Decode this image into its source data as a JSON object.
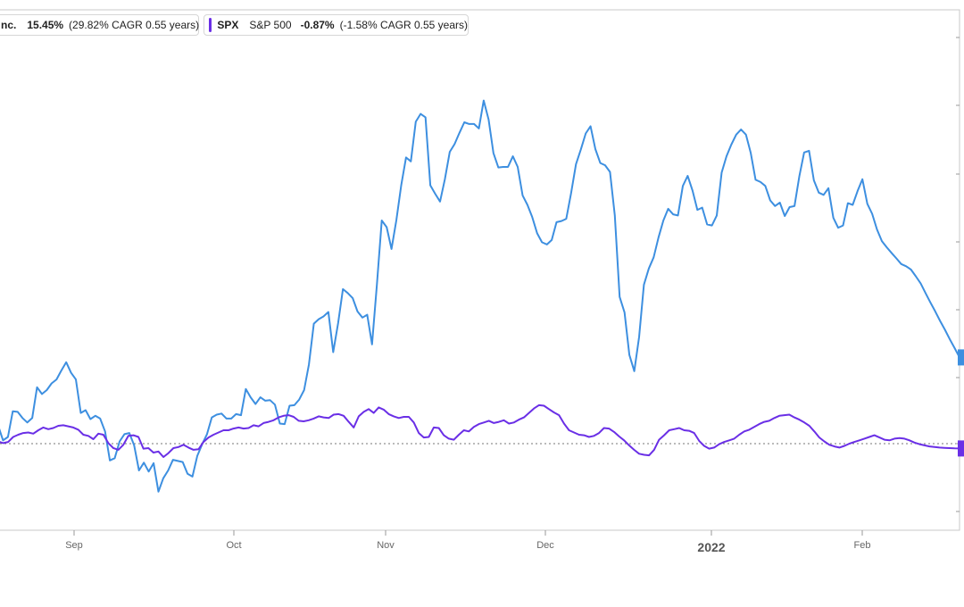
{
  "legend": [
    {
      "symbol": "",
      "name": "nc.",
      "change": "15.45%",
      "cagr": "(29.82% CAGR 0.55 years)",
      "color": "#3d8fe0"
    },
    {
      "symbol": "SPX",
      "name": "S&P 500",
      "change": "-0.87%",
      "cagr": "(-1.58% CAGR 0.55 years)",
      "color": "#6a2fe6"
    }
  ],
  "chart_data": {
    "type": "line",
    "title": "",
    "xlabel": "",
    "ylabel": "",
    "x_tick_labels": [
      "Sep",
      "Oct",
      "Nov",
      "Dec",
      "2022",
      "Feb"
    ],
    "y_axis_labels": "not visible (right-side ticks without labels)",
    "baseline": 0,
    "grid": false,
    "legend_position": "top-left",
    "series": [
      {
        "name": "nc.",
        "color": "#3d8fe0",
        "values": [
          3.2,
          0.6,
          1.2,
          5.8,
          5.7,
          4.6,
          3.8,
          4.6,
          10.1,
          8.9,
          9.6,
          10.8,
          11.5,
          13.1,
          14.6,
          12.7,
          11.5,
          5.5,
          6.0,
          4.4,
          5.0,
          4.5,
          2.2,
          -3.0,
          -2.6,
          0.4,
          1.7,
          1.9,
          -0.3,
          -4.8,
          -3.4,
          -5.0,
          -3.5,
          -8.6,
          -6.2,
          -4.8,
          -2.9,
          -3.1,
          -3.3,
          -5.4,
          -5.9,
          -2.2,
          -0.1,
          1.7,
          4.7,
          5.2,
          5.4,
          4.5,
          4.5,
          5.3,
          5.1,
          9.8,
          8.3,
          7.1,
          8.3,
          7.7,
          7.8,
          7.0,
          3.6,
          3.5,
          6.8,
          6.9,
          7.9,
          9.6,
          14.2,
          21.5,
          22.3,
          22.8,
          23.6,
          16.4,
          21.6,
          27.7,
          27.0,
          26.1,
          23.7,
          22.6,
          23.1,
          17.8,
          28.6,
          40.0,
          38.8,
          34.9,
          40.0,
          46.3,
          51.3,
          50.6,
          57.7,
          59.1,
          58.5,
          46.3,
          44.8,
          43.4,
          47.4,
          52.3,
          53.7,
          55.7,
          57.6,
          57.3,
          57.3,
          56.5,
          61.5,
          58.1,
          52.1,
          49.5,
          49.6,
          49.6,
          51.5,
          49.6,
          44.5,
          42.8,
          40.6,
          37.7,
          36.1,
          35.7,
          36.5,
          39.7,
          39.9,
          40.3,
          44.9,
          50.1,
          52.7,
          55.6,
          56.9,
          52.8,
          50.3,
          49.9,
          48.7,
          40.9,
          26.3,
          23.5,
          15.9,
          13.0,
          19.1,
          28.5,
          31.4,
          33.4,
          37.0,
          40.0,
          42.1,
          41.1,
          40.9,
          46.2,
          48.0,
          45.4,
          41.9,
          42.3,
          39.3,
          39.1,
          40.9,
          48.6,
          51.5,
          53.6,
          55.4,
          56.3,
          55.4,
          52.1,
          47.3,
          46.9,
          46.2,
          43.6,
          42.6,
          43.2,
          40.8,
          42.4,
          42.6,
          47.9,
          52.2,
          52.5,
          47.2,
          45.0,
          44.6,
          45.8,
          40.5,
          38.7,
          39.1,
          43.1,
          42.8,
          45.3,
          47.4,
          43.0,
          41.2,
          38.4,
          36.3,
          35.2,
          34.2,
          33.2,
          32.2,
          31.8,
          31.2,
          30.0,
          28.7,
          27.0,
          25.3,
          23.7,
          22.0,
          20.4,
          18.7,
          17.1,
          15.45
        ]
      },
      {
        "name": "S&P 500",
        "color": "#6a2fe6",
        "values": [
          0.4,
          0.1,
          0.3,
          1.2,
          1.6,
          1.9,
          2.0,
          1.8,
          2.4,
          2.9,
          2.6,
          2.8,
          3.2,
          3.3,
          3.1,
          2.9,
          2.5,
          1.6,
          1.4,
          0.8,
          1.8,
          1.6,
          0.1,
          -0.8,
          -1.1,
          -0.2,
          1.4,
          1.5,
          1.2,
          -0.9,
          -0.8,
          -1.6,
          -1.4,
          -2.4,
          -1.7,
          -0.8,
          -0.6,
          -0.2,
          -0.7,
          -1.1,
          -1.0,
          0.3,
          1.1,
          1.6,
          2.0,
          2.4,
          2.4,
          2.7,
          2.9,
          2.7,
          2.8,
          3.3,
          3.1,
          3.7,
          3.9,
          4.2,
          4.7,
          5.0,
          5.1,
          4.8,
          4.1,
          4.0,
          4.2,
          4.5,
          4.9,
          4.7,
          4.6,
          5.2,
          5.3,
          5.0,
          3.9,
          2.9,
          4.9,
          5.7,
          6.2,
          5.5,
          6.5,
          6.1,
          5.3,
          4.9,
          4.6,
          4.8,
          4.8,
          3.8,
          1.9,
          1.1,
          1.2,
          2.9,
          2.8,
          1.5,
          0.9,
          0.7,
          1.6,
          2.4,
          2.2,
          3.0,
          3.5,
          3.8,
          4.1,
          3.7,
          3.9,
          4.2,
          3.6,
          3.8,
          4.3,
          4.7,
          5.5,
          6.3,
          6.9,
          6.8,
          6.2,
          5.6,
          5.1,
          3.6,
          2.4,
          2.0,
          1.6,
          1.5,
          1.2,
          1.4,
          1.9,
          2.8,
          2.7,
          2.1,
          1.3,
          0.6,
          -0.3,
          -1.1,
          -1.8,
          -2.0,
          -2.1,
          -1.1,
          0.7,
          1.5,
          2.4,
          2.6,
          2.8,
          2.4,
          2.3,
          1.9,
          0.5,
          -0.4,
          -0.9,
          -0.7,
          -0.1,
          0.3,
          0.6,
          0.9,
          1.6,
          2.2,
          2.5,
          3.0,
          3.5,
          3.9,
          4.1,
          4.6,
          5.0,
          5.1,
          5.2,
          4.7,
          4.3,
          3.8,
          3.2,
          2.2,
          1.1,
          0.4,
          -0.2,
          -0.5,
          -0.7,
          -0.4,
          0.0,
          0.3,
          0.6,
          0.9,
          1.2,
          1.5,
          1.1,
          0.7,
          0.6,
          0.9,
          1.0,
          0.9,
          0.6,
          0.2,
          -0.1,
          -0.3,
          -0.5,
          -0.6,
          -0.7,
          -0.75,
          -0.8,
          -0.85,
          -0.87
        ]
      }
    ]
  }
}
